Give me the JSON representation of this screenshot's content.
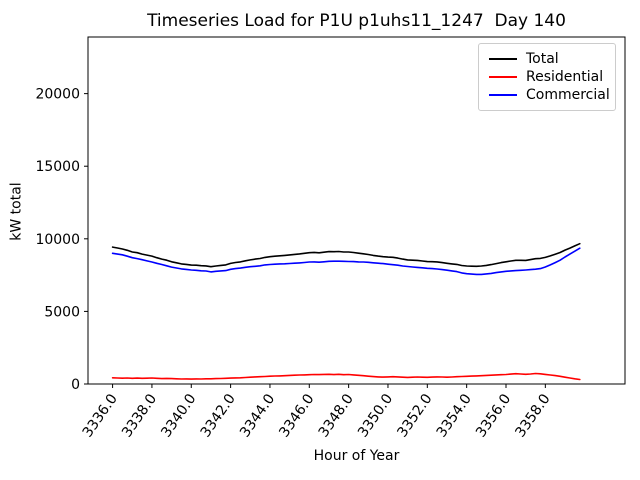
{
  "figure": {
    "title": "Timeseries Load for P1U p1uhs11_1247  Day 140",
    "xlabel": "Hour of Year",
    "ylabel": "kW total"
  },
  "chart_data": {
    "type": "line",
    "title": "Timeseries Load for P1U p1uhs11_1247  Day 140",
    "xlabel": "Hour of Year",
    "ylabel": "kW total",
    "grid": false,
    "legend_position": "upper right",
    "xlim": [
      3334.75,
      3362.05
    ],
    "ylim": [
      0,
      23900
    ],
    "x_ticks": [
      3336,
      3338,
      3340,
      3342,
      3344,
      3346,
      3348,
      3350,
      3352,
      3354,
      3356,
      3358
    ],
    "x_tick_labels": [
      "3336.0",
      "3338.0",
      "3340.0",
      "3342.0",
      "3344.0",
      "3346.0",
      "3348.0",
      "3350.0",
      "3352.0",
      "3354.0",
      "3356.0",
      "3358.0"
    ],
    "y_ticks": [
      0,
      5000,
      10000,
      15000,
      20000
    ],
    "y_tick_labels": [
      "0",
      "5000",
      "10000",
      "15000",
      "20000"
    ],
    "x": [
      3336.0,
      3336.25,
      3336.5,
      3336.75,
      3337.0,
      3337.25,
      3337.5,
      3337.75,
      3338.0,
      3338.25,
      3338.5,
      3338.75,
      3339.0,
      3339.25,
      3339.5,
      3339.75,
      3340.0,
      3340.25,
      3340.5,
      3340.75,
      3341.0,
      3341.25,
      3341.5,
      3341.75,
      3342.0,
      3342.25,
      3342.5,
      3342.75,
      3343.0,
      3343.25,
      3343.5,
      3343.75,
      3344.0,
      3344.25,
      3344.5,
      3344.75,
      3345.0,
      3345.25,
      3345.5,
      3345.75,
      3346.0,
      3346.25,
      3346.5,
      3346.75,
      3347.0,
      3347.25,
      3347.5,
      3347.75,
      3348.0,
      3348.25,
      3348.5,
      3348.75,
      3349.0,
      3349.25,
      3349.5,
      3349.75,
      3350.0,
      3350.25,
      3350.5,
      3350.75,
      3351.0,
      3351.25,
      3351.5,
      3351.75,
      3352.0,
      3352.25,
      3352.5,
      3352.75,
      3353.0,
      3353.25,
      3353.5,
      3353.75,
      3354.0,
      3354.25,
      3354.5,
      3354.75,
      3355.0,
      3355.25,
      3355.5,
      3355.75,
      3356.0,
      3356.25,
      3356.5,
      3356.75,
      3357.0,
      3357.25,
      3357.5,
      3357.75,
      3358.0,
      3358.25,
      3358.5,
      3358.75,
      3359.0,
      3359.25,
      3359.5,
      3359.75
    ],
    "series": [
      {
        "name": "Total",
        "color": "#000000",
        "values": [
          9430,
          9365,
          9300,
          9210,
          9095,
          9045,
          8950,
          8880,
          8810,
          8700,
          8605,
          8525,
          8420,
          8345,
          8275,
          8240,
          8190,
          8180,
          8145,
          8135,
          8080,
          8130,
          8170,
          8200,
          8305,
          8370,
          8410,
          8485,
          8550,
          8600,
          8645,
          8720,
          8770,
          8800,
          8830,
          8855,
          8890,
          8925,
          8960,
          9000,
          9040,
          9065,
          9035,
          9080,
          9120,
          9110,
          9125,
          9090,
          9095,
          9060,
          9010,
          8970,
          8920,
          8860,
          8810,
          8765,
          8740,
          8725,
          8670,
          8600,
          8545,
          8525,
          8510,
          8470,
          8430,
          8425,
          8410,
          8360,
          8310,
          8275,
          8240,
          8165,
          8130,
          8115,
          8110,
          8125,
          8170,
          8225,
          8295,
          8360,
          8415,
          8470,
          8520,
          8520,
          8515,
          8570,
          8630,
          8650,
          8720,
          8820,
          8940,
          9060,
          9220,
          9360,
          9510,
          9660
        ]
      },
      {
        "name": "Residential",
        "color": "#ff0000",
        "values": [
          430,
          415,
          400,
          410,
          395,
          405,
          390,
          400,
          410,
          390,
          375,
          385,
          370,
          355,
          345,
          350,
          340,
          350,
          345,
          355,
          360,
          370,
          380,
          390,
          405,
          420,
          430,
          445,
          470,
          490,
          505,
          520,
          540,
          550,
          560,
          575,
          590,
          605,
          620,
          630,
          640,
          655,
          645,
          660,
          670,
          650,
          665,
          640,
          655,
          630,
          600,
          570,
          540,
          510,
          490,
          475,
          490,
          505,
          490,
          470,
          455,
          465,
          480,
          470,
          460,
          475,
          490,
          480,
          470,
          485,
          500,
          515,
          530,
          545,
          560,
          575,
          590,
          605,
          625,
          640,
          655,
          680,
          710,
          690,
          665,
          690,
          720,
          700,
          660,
          620,
          580,
          530,
          470,
          410,
          360,
          310
        ]
      },
      {
        "name": "Commercial",
        "color": "#0000ff",
        "values": [
          9000,
          8950,
          8900,
          8800,
          8700,
          8640,
          8560,
          8480,
          8400,
          8310,
          8230,
          8140,
          8050,
          7990,
          7930,
          7890,
          7850,
          7830,
          7800,
          7780,
          7720,
          7760,
          7790,
          7810,
          7900,
          7950,
          7980,
          8040,
          8080,
          8110,
          8140,
          8200,
          8230,
          8250,
          8270,
          8280,
          8300,
          8320,
          8340,
          8370,
          8400,
          8410,
          8390,
          8420,
          8450,
          8460,
          8460,
          8450,
          8440,
          8430,
          8410,
          8400,
          8380,
          8350,
          8320,
          8290,
          8250,
          8220,
          8180,
          8130,
          8090,
          8060,
          8030,
          8000,
          7970,
          7950,
          7920,
          7880,
          7840,
          7790,
          7740,
          7650,
          7600,
          7570,
          7550,
          7550,
          7580,
          7620,
          7670,
          7720,
          7760,
          7790,
          7810,
          7830,
          7850,
          7880,
          7910,
          7950,
          8060,
          8200,
          8360,
          8530,
          8750,
          8950,
          9150,
          9350
        ]
      }
    ]
  }
}
